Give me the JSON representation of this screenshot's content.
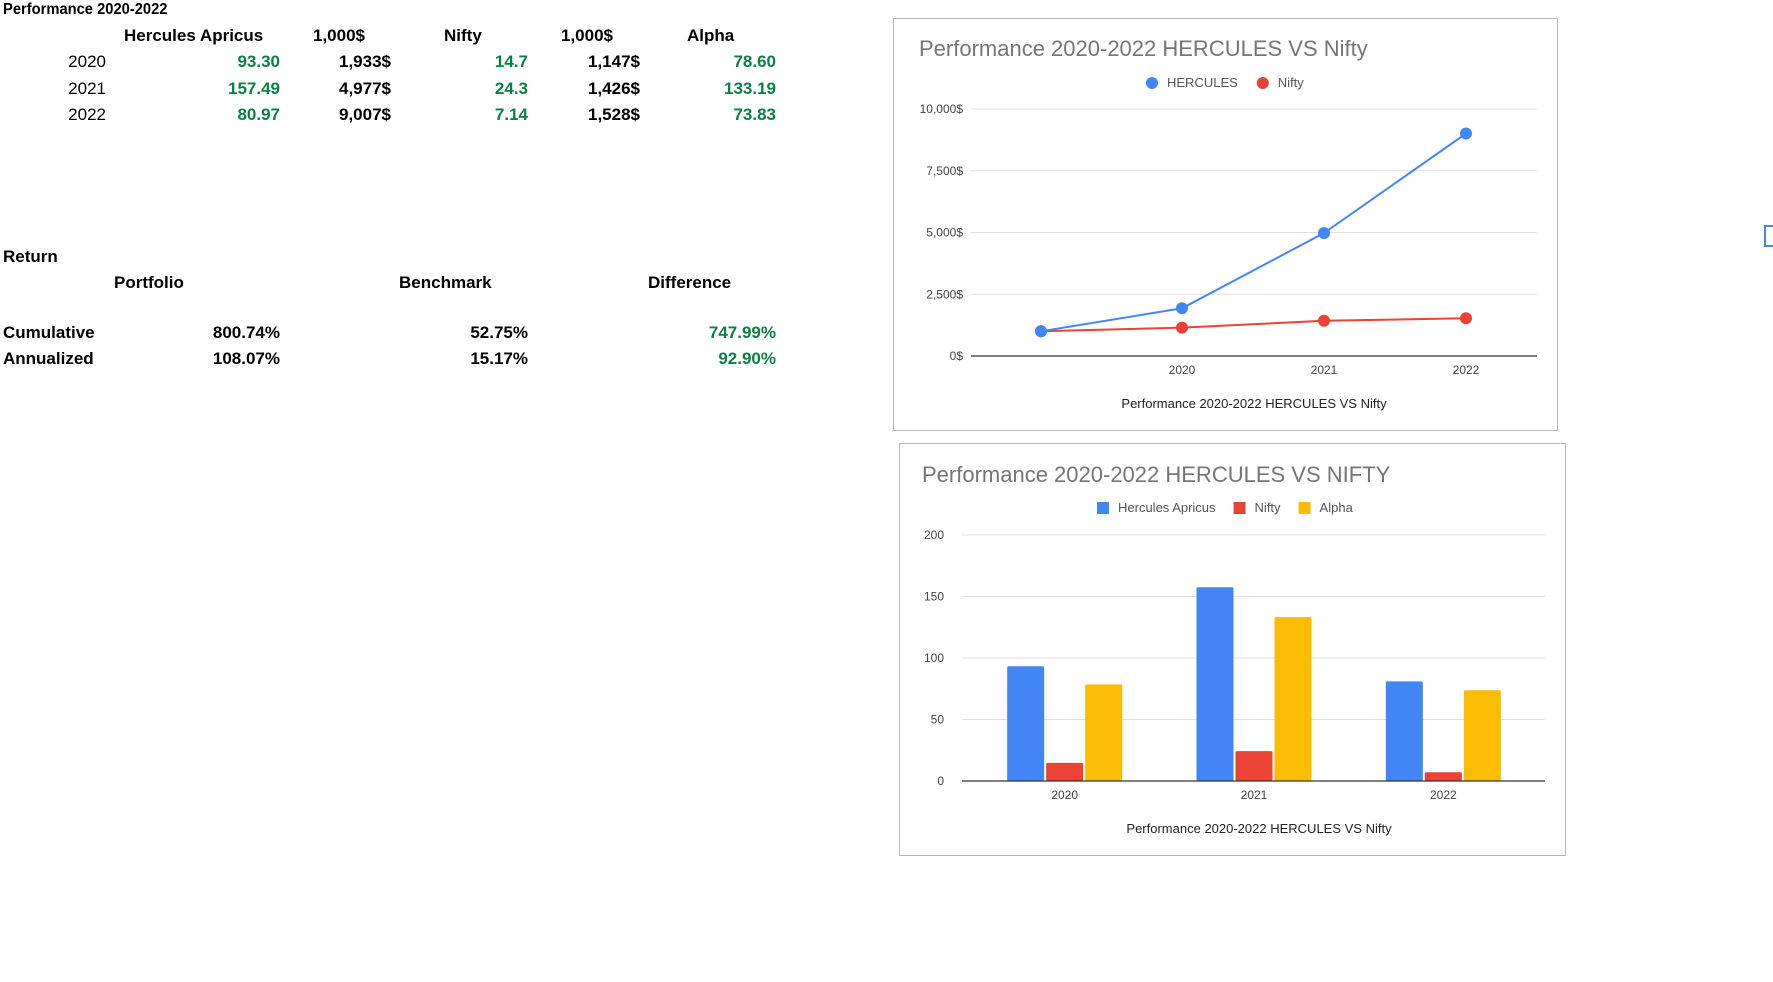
{
  "sheet": {
    "title": "Performance 2020-2022",
    "headers": [
      "Hercules Apricus",
      "1,000$",
      "Nifty",
      "1,000$",
      "Alpha"
    ],
    "rows": [
      {
        "year": "2020",
        "hercules": "93.30",
        "hercules_value": "1,933$",
        "nifty": "14.7",
        "nifty_value": "1,147$",
        "alpha": "78.60"
      },
      {
        "year": "2021",
        "hercules": "157.49",
        "hercules_value": "4,977$",
        "nifty": "24.3",
        "nifty_value": "1,426$",
        "alpha": "133.19"
      },
      {
        "year": "2022",
        "hercules": "80.97",
        "hercules_value": "9,007$",
        "nifty": "7.14",
        "nifty_value": "1,528$",
        "alpha": "73.83"
      }
    ],
    "return_label": "Return",
    "return_headers": {
      "portfolio": "Portfolio",
      "benchmark": "Benchmark",
      "difference": "Difference"
    },
    "return_rows": [
      {
        "label": "Cumulative",
        "portfolio": "800.74%",
        "benchmark": "52.75%",
        "difference": "747.99%"
      },
      {
        "label": "Annualized",
        "portfolio": "108.07%",
        "benchmark": "15.17%",
        "difference": "92.90%"
      }
    ]
  },
  "colors": {
    "blue": "#4285f4",
    "red": "#ea4335",
    "yellow": "#fbbc04",
    "green_text": "#0b8043",
    "grid": "#e0e0e0",
    "axis": "#333333",
    "title": "#757575"
  },
  "chart_data": [
    {
      "type": "line",
      "title": "Performance 2020-2022 HERCULES VS Nifty",
      "xlabel": "Performance 2020-2022 HERCULES VS Nifty",
      "ylabel": "",
      "categories": [
        "",
        "2020",
        "2021",
        "2022"
      ],
      "ylim": [
        0,
        10000
      ],
      "yticks": [
        0,
        2500,
        5000,
        7500,
        10000
      ],
      "ytick_labels": [
        "0$",
        "2,500$",
        "5,000$",
        "7,500$",
        "10,000$"
      ],
      "legend_position": "top",
      "grid": true,
      "series": [
        {
          "name": "HERCULES",
          "color": "#4285f4",
          "values": [
            1000,
            1933,
            4977,
            9007
          ]
        },
        {
          "name": "Nifty",
          "color": "#ea4335",
          "values": [
            1000,
            1147,
            1426,
            1528
          ]
        }
      ]
    },
    {
      "type": "bar",
      "title": "Performance 2020-2022 HERCULES VS NIFTY",
      "xlabel": "Performance 2020-2022 HERCULES VS Nifty",
      "ylabel": "",
      "categories": [
        "2020",
        "2021",
        "2022"
      ],
      "ylim": [
        0,
        200
      ],
      "yticks": [
        0,
        50,
        100,
        150,
        200
      ],
      "ytick_labels": [
        "0",
        "50",
        "100",
        "150",
        "200"
      ],
      "legend_position": "top",
      "grid": true,
      "series": [
        {
          "name": "Hercules Apricus",
          "color": "#4285f4",
          "values": [
            93.3,
            157.49,
            80.97
          ]
        },
        {
          "name": "Nifty",
          "color": "#ea4335",
          "values": [
            14.7,
            24.3,
            7.14
          ]
        },
        {
          "name": "Alpha",
          "color": "#fbbc04",
          "values": [
            78.6,
            133.19,
            73.83
          ]
        }
      ]
    }
  ]
}
